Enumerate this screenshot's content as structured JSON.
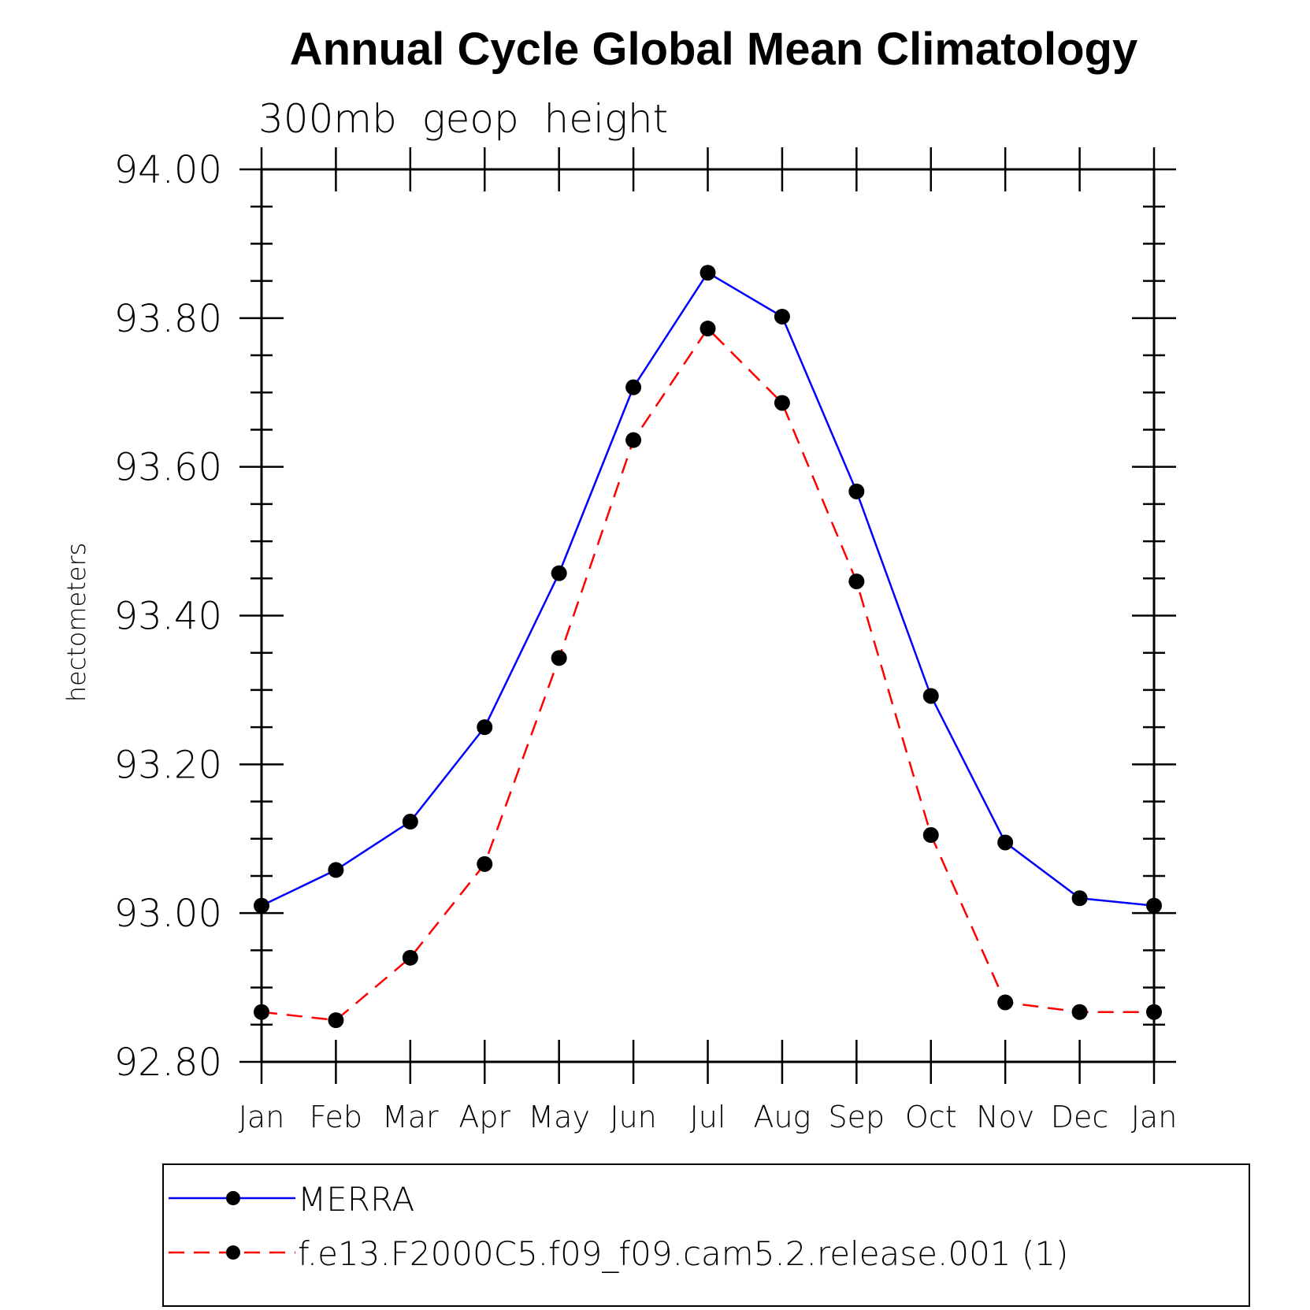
{
  "chart_data": {
    "type": "line",
    "title": "Annual Cycle Global Mean Climatology",
    "subtitle": "300mb  geop  height",
    "xlabel": "",
    "ylabel": "hectometers",
    "ylim": [
      92.8,
      94.0
    ],
    "yticks": [
      "92.80",
      "93.00",
      "93.20",
      "93.40",
      "93.60",
      "93.80",
      "94.00"
    ],
    "categories": [
      "Jan",
      "Feb",
      "Mar",
      "Apr",
      "May",
      "Jun",
      "Jul",
      "Aug",
      "Sep",
      "Oct",
      "Nov",
      "Dec",
      "Jan"
    ],
    "series": [
      {
        "name": "MERRA",
        "color": "#0000ff",
        "style": "solid",
        "marker": "filled-circle",
        "values": [
          93.01,
          93.058,
          93.123,
          93.25,
          93.457,
          93.707,
          93.861,
          93.802,
          93.567,
          93.292,
          93.095,
          93.02,
          93.01
        ]
      },
      {
        "name": "f.e13.F2000C5.f09_f09.cam5.2.release.001 (1)",
        "color": "#ff0000",
        "style": "dashed",
        "marker": "filled-circle",
        "values": [
          92.867,
          92.856,
          92.94,
          93.066,
          93.343,
          93.636,
          93.786,
          93.686,
          93.446,
          93.105,
          92.88,
          92.867,
          92.867
        ]
      }
    ],
    "grid": false,
    "legend_position": "bottom"
  }
}
